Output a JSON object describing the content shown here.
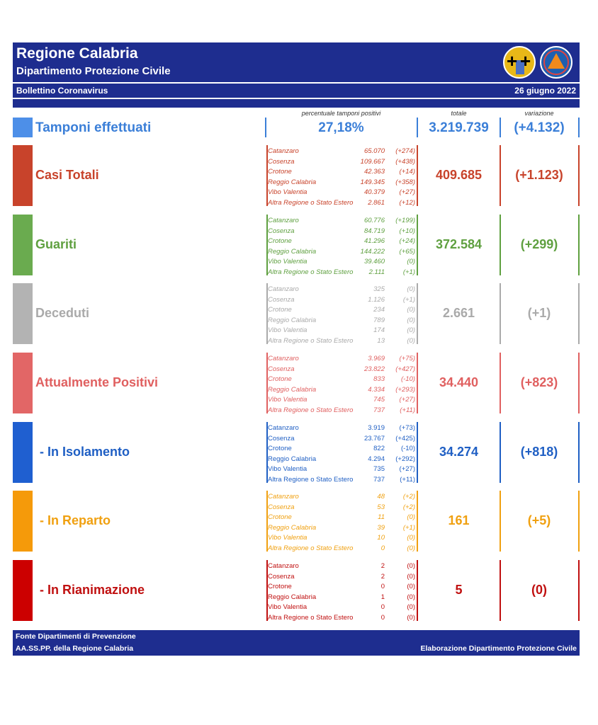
{
  "header": {
    "title": "Regione Calabria",
    "subtitle": "Dipartimento Protezione Civile",
    "bulletin": "Bollettino Coronavirus",
    "date": "26 giugno 2022"
  },
  "columns": {
    "pct": "percentuale tamponi positivi",
    "total": "totale",
    "change": "variazione"
  },
  "tamponi": {
    "label": "Tamponi effettuati",
    "pct": "27,18%",
    "total": "3.219.739",
    "change": "(+4.132)",
    "color": "#3b7fd8"
  },
  "sections": [
    {
      "label": "Casi Totali",
      "color": "#c8432b",
      "square": "#c8432b",
      "italic": true,
      "total": "409.685",
      "change": "(+1.123)",
      "rows": [
        {
          "name": "Catanzaro",
          "value": "65.070",
          "change": "(+274)"
        },
        {
          "name": "Cosenza",
          "value": "109.667",
          "change": "(+438)"
        },
        {
          "name": "Crotone",
          "value": "42.363",
          "change": "(+14)"
        },
        {
          "name": "Reggio Calabria",
          "value": "149.345",
          "change": "(+358)"
        },
        {
          "name": "Vibo Valentia",
          "value": "40.379",
          "change": "(+27)"
        },
        {
          "name": "Altra Regione o Stato Estero",
          "value": "2.861",
          "change": "(+12)"
        }
      ]
    },
    {
      "label": "Guariti",
      "color": "#5fa040",
      "square": "#6aab4f",
      "italic": true,
      "total": "372.584",
      "change": "(+299)",
      "rows": [
        {
          "name": "Catanzaro",
          "value": "60.776",
          "change": "(+199)"
        },
        {
          "name": "Cosenza",
          "value": "84.719",
          "change": "(+10)"
        },
        {
          "name": "Crotone",
          "value": "41.296",
          "change": "(+24)"
        },
        {
          "name": "Reggio Calabria",
          "value": "144.222",
          "change": "(+65)"
        },
        {
          "name": "Vibo Valentia",
          "value": "39.460",
          "change": "(0)"
        },
        {
          "name": "Altra Regione o Stato Estero",
          "value": "2.111",
          "change": "(+1)"
        }
      ]
    },
    {
      "label": "Deceduti",
      "color": "#aaaaaa",
      "square": "#b3b3b3",
      "italic": true,
      "total": "2.661",
      "change": "(+1)",
      "rows": [
        {
          "name": "Catanzaro",
          "value": "325",
          "change": "(0)"
        },
        {
          "name": "Cosenza",
          "value": "1.126",
          "change": "(+1)"
        },
        {
          "name": "Crotone",
          "value": "234",
          "change": "(0)"
        },
        {
          "name": "Reggio Calabria",
          "value": "789",
          "change": "(0)"
        },
        {
          "name": "Vibo Valentia",
          "value": "174",
          "change": "(0)"
        },
        {
          "name": "Altra Regione o Stato Estero",
          "value": "13",
          "change": "(0)"
        }
      ]
    },
    {
      "label": "Attualmente Positivi",
      "color": "#e06060",
      "square": "#e26666",
      "italic": true,
      "total": "34.440",
      "change": "(+823)",
      "rows": [
        {
          "name": "Catanzaro",
          "value": "3.969",
          "change": "(+75)"
        },
        {
          "name": "Cosenza",
          "value": "23.822",
          "change": "(+427)"
        },
        {
          "name": "Crotone",
          "value": "833",
          "change": "(-10)"
        },
        {
          "name": "Reggio Calabria",
          "value": "4.334",
          "change": "(+293)"
        },
        {
          "name": "Vibo Valentia",
          "value": "745",
          "change": "(+27)"
        },
        {
          "name": "Altra Regione o Stato Estero",
          "value": "737",
          "change": "(+11)"
        }
      ]
    },
    {
      "label": "- In Isolamento",
      "color": "#1f5fc4",
      "square": "#1f5fd0",
      "italic": false,
      "total": "34.274",
      "change": "(+818)",
      "rows": [
        {
          "name": "Catanzaro",
          "value": "3.919",
          "change": "(+73)"
        },
        {
          "name": "Cosenza",
          "value": "23.767",
          "change": "(+425)"
        },
        {
          "name": "Crotone",
          "value": "822",
          "change": "(-10)"
        },
        {
          "name": "Reggio Calabria",
          "value": "4.294",
          "change": "(+292)"
        },
        {
          "name": "Vibo Valentia",
          "value": "735",
          "change": "(+27)"
        },
        {
          "name": "Altra Regione o Stato Estero",
          "value": "737",
          "change": "(+11)"
        }
      ]
    },
    {
      "label": "- In Reparto",
      "color": "#f0a010",
      "square": "#f59a0a",
      "italic": true,
      "total": "161",
      "change": "(+5)",
      "rows": [
        {
          "name": "Catanzaro",
          "value": "48",
          "change": "(+2)"
        },
        {
          "name": "Cosenza",
          "value": "53",
          "change": "(+2)"
        },
        {
          "name": "Crotone",
          "value": "11",
          "change": "(0)"
        },
        {
          "name": "Reggio Calabria",
          "value": "39",
          "change": "(+1)"
        },
        {
          "name": "Vibo Valentia",
          "value": "10",
          "change": "(0)"
        },
        {
          "name": "Altra Regione o Stato Estero",
          "value": "0",
          "change": "(0)"
        }
      ]
    },
    {
      "label": "- In Rianimazione",
      "color": "#c01010",
      "square": "#cc0000",
      "italic": false,
      "total": "5",
      "change": "(0)",
      "rows": [
        {
          "name": "Catanzaro",
          "value": "2",
          "change": "(0)"
        },
        {
          "name": "Cosenza",
          "value": "2",
          "change": "(0)"
        },
        {
          "name": "Crotone",
          "value": "0",
          "change": "(0)"
        },
        {
          "name": "Reggio Calabria",
          "value": "1",
          "change": "(0)"
        },
        {
          "name": "Vibo Valentia",
          "value": "0",
          "change": "(0)"
        },
        {
          "name": "Altra Regione o Stato Estero",
          "value": "0",
          "change": "(0)"
        }
      ]
    }
  ],
  "footer": {
    "line1": "Fonte Dipartimenti di Prevenzione",
    "line2": "AA.SS.PP.  della Regione Calabria",
    "right": "Elaborazione Dipartimento Protezione Civile"
  }
}
